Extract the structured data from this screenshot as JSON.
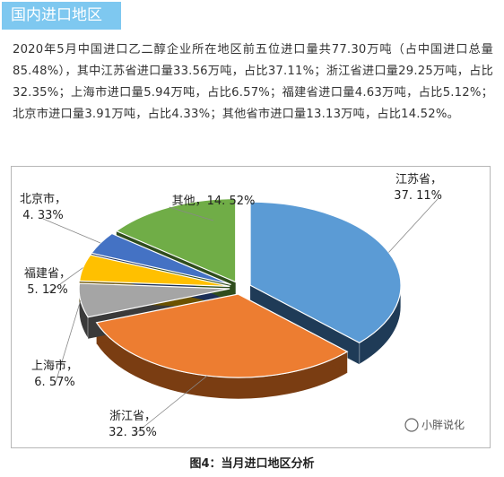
{
  "section_tag": "国内进口地区",
  "paragraph": "2020年5月中国进口乙二醇企业所在地区前五位进口量共77.30万吨（占中国进口总量85.48%），其中江苏省进口量33.56万吨，占比37.11%；浙江省进口量29.25万吨，占比32.35%；上海市进口量5.94万吨，占比6.57%；福建省进口量4.63万吨，占比5.12%；北京市进口量3.91万吨，占比4.33%；其他省市进口量13.13万吨，占比14.52%。",
  "watermark": "小胖说化",
  "caption": "图4：当月进口地区分析",
  "chart_data": {
    "type": "pie",
    "title": "",
    "slices": [
      {
        "name": "江苏省",
        "value": 37.11,
        "label": "37. 11%",
        "color": "#5b9bd5",
        "side": "#1f3b57"
      },
      {
        "name": "浙江省",
        "value": 32.35,
        "label": "32. 35%",
        "color": "#ed7d31",
        "side": "#7a3d12"
      },
      {
        "name": "上海市",
        "value": 6.57,
        "label": "6. 57%",
        "color": "#a5a5a5",
        "side": "#3a3a3a"
      },
      {
        "name": "福建省",
        "value": 5.12,
        "label": "5. 12%",
        "color": "#ffc000",
        "side": "#6b5200"
      },
      {
        "name": "北京市",
        "value": 4.33,
        "label": "4. 33%",
        "color": "#4472c4",
        "side": "#1c2f57"
      },
      {
        "name": "其他",
        "value": 14.52,
        "label": "14. 52%",
        "color": "#70ad47",
        "side": "#2f4d1d"
      }
    ],
    "legend": "none",
    "style": "3d-exploded",
    "palette_note": "colors per slice as listed"
  }
}
